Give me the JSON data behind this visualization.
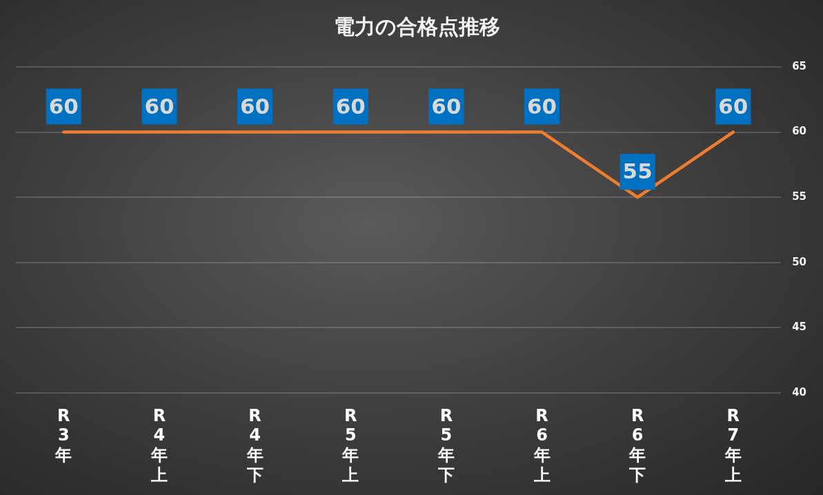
{
  "chart_data": {
    "type": "line",
    "title": "電力の合格点推移",
    "categories": [
      "R3年",
      "R4年上",
      "R4年下",
      "R5年上",
      "R5年下",
      "R6年上",
      "R6年下",
      "R7年上"
    ],
    "series": [
      {
        "color": "#ed7d31",
        "values": [
          60,
          60,
          60,
          60,
          60,
          60,
          55,
          60
        ]
      }
    ],
    "ylim": [
      40,
      65
    ],
    "yticks": [
      40,
      45,
      50,
      55,
      60,
      65
    ],
    "grid": "y",
    "marker": "none",
    "line_style": "solid",
    "data_labels": true
  }
}
